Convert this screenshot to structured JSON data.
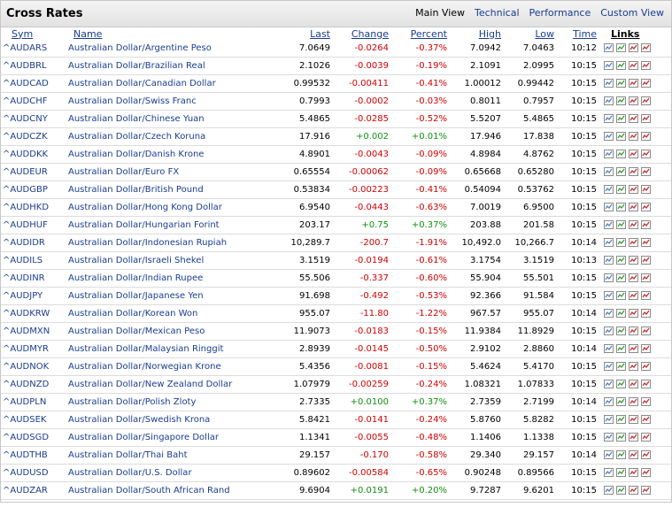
{
  "header": {
    "title": "Cross Rates",
    "tabs": [
      "Main View",
      "Technical",
      "Performance",
      "Custom View"
    ]
  },
  "table": {
    "columns": [
      "Sym",
      "Name",
      "Last",
      "Change",
      "Percent",
      "High",
      "Low",
      "Time",
      "Links"
    ],
    "rows": [
      [
        "^AUDARS",
        "Australian Dollar/Argentine Peso",
        "7.0649",
        "-0.0264",
        "-0.37%",
        "7.0942",
        "7.0463",
        "10:12"
      ],
      [
        "^AUDBRL",
        "Australian Dollar/Brazilian Real",
        "2.1026",
        "-0.0039",
        "-0.19%",
        "2.1091",
        "2.0995",
        "10:15"
      ],
      [
        "^AUDCAD",
        "Australian Dollar/Canadian Dollar",
        "0.99532",
        "-0.00411",
        "-0.41%",
        "1.00012",
        "0.99442",
        "10:15"
      ],
      [
        "^AUDCHF",
        "Australian Dollar/Swiss Franc",
        "0.7993",
        "-0.0002",
        "-0.03%",
        "0.8011",
        "0.7957",
        "10:15"
      ],
      [
        "^AUDCNY",
        "Australian Dollar/Chinese Yuan",
        "5.4865",
        "-0.0285",
        "-0.52%",
        "5.5207",
        "5.4865",
        "10:15"
      ],
      [
        "^AUDCZK",
        "Australian Dollar/Czech Koruna",
        "17.916",
        "+0.002",
        "+0.01%",
        "17.946",
        "17.838",
        "10:15"
      ],
      [
        "^AUDDKK",
        "Australian Dollar/Danish Krone",
        "4.8901",
        "-0.0043",
        "-0.09%",
        "4.8984",
        "4.8762",
        "10:15"
      ],
      [
        "^AUDEUR",
        "Australian Dollar/Euro FX",
        "0.65554",
        "-0.00062",
        "-0.09%",
        "0.65668",
        "0.65280",
        "10:15"
      ],
      [
        "^AUDGBP",
        "Australian Dollar/British Pound",
        "0.53834",
        "-0.00223",
        "-0.41%",
        "0.54094",
        "0.53762",
        "10:15"
      ],
      [
        "^AUDHKD",
        "Australian Dollar/Hong Kong Dollar",
        "6.9540",
        "-0.0443",
        "-0.63%",
        "7.0019",
        "6.9500",
        "10:15"
      ],
      [
        "^AUDHUF",
        "Australian Dollar/Hungarian Forint",
        "203.17",
        "+0.75",
        "+0.37%",
        "203.88",
        "201.58",
        "10:15"
      ],
      [
        "^AUDIDR",
        "Australian Dollar/Indonesian Rupiah",
        "10,289.7",
        "-200.7",
        "-1.91%",
        "10,492.0",
        "10,266.7",
        "10:14"
      ],
      [
        "^AUDILS",
        "Australian Dollar/Israeli Shekel",
        "3.1519",
        "-0.0194",
        "-0.61%",
        "3.1754",
        "3.1519",
        "10:13"
      ],
      [
        "^AUDINR",
        "Australian Dollar/Indian Rupee",
        "55.506",
        "-0.337",
        "-0.60%",
        "55.904",
        "55.501",
        "10:15"
      ],
      [
        "^AUDJPY",
        "Australian Dollar/Japanese Yen",
        "91.698",
        "-0.492",
        "-0.53%",
        "92.366",
        "91.584",
        "10:15"
      ],
      [
        "^AUDKRW",
        "Australian Dollar/Korean Won",
        "955.07",
        "-11.80",
        "-1.22%",
        "967.57",
        "955.07",
        "10:14"
      ],
      [
        "^AUDMXN",
        "Australian Dollar/Mexican Peso",
        "11.9073",
        "-0.0183",
        "-0.15%",
        "11.9384",
        "11.8929",
        "10:15"
      ],
      [
        "^AUDMYR",
        "Australian Dollar/Malaysian Ringgit",
        "2.8939",
        "-0.0145",
        "-0.50%",
        "2.9102",
        "2.8860",
        "10:14"
      ],
      [
        "^AUDNOK",
        "Australian Dollar/Norwegian Krone",
        "5.4356",
        "-0.0081",
        "-0.15%",
        "5.4624",
        "5.4170",
        "10:15"
      ],
      [
        "^AUDNZD",
        "Australian Dollar/New Zealand Dollar",
        "1.07979",
        "-0.00259",
        "-0.24%",
        "1.08321",
        "1.07833",
        "10:15"
      ],
      [
        "^AUDPLN",
        "Australian Dollar/Polish Zloty",
        "2.7335",
        "+0.0100",
        "+0.37%",
        "2.7359",
        "2.7199",
        "10:14"
      ],
      [
        "^AUDSEK",
        "Australian Dollar/Swedish Krona",
        "5.8421",
        "-0.0141",
        "-0.24%",
        "5.8760",
        "5.8282",
        "10:15"
      ],
      [
        "^AUDSGD",
        "Australian Dollar/Singapore Dollar",
        "1.1341",
        "-0.0055",
        "-0.48%",
        "1.1406",
        "1.1338",
        "10:15"
      ],
      [
        "^AUDTHB",
        "Australian Dollar/Thai Baht",
        "29.157",
        "-0.170",
        "-0.58%",
        "29.340",
        "29.157",
        "10:14"
      ],
      [
        "^AUDUSD",
        "Australian Dollar/U.S. Dollar",
        "0.89602",
        "-0.00584",
        "-0.65%",
        "0.90248",
        "0.89566",
        "10:15"
      ],
      [
        "^AUDZAR",
        "Australian Dollar/South African Rand",
        "9.6904",
        "+0.0191",
        "+0.20%",
        "9.7287",
        "9.6201",
        "10:15"
      ]
    ]
  }
}
